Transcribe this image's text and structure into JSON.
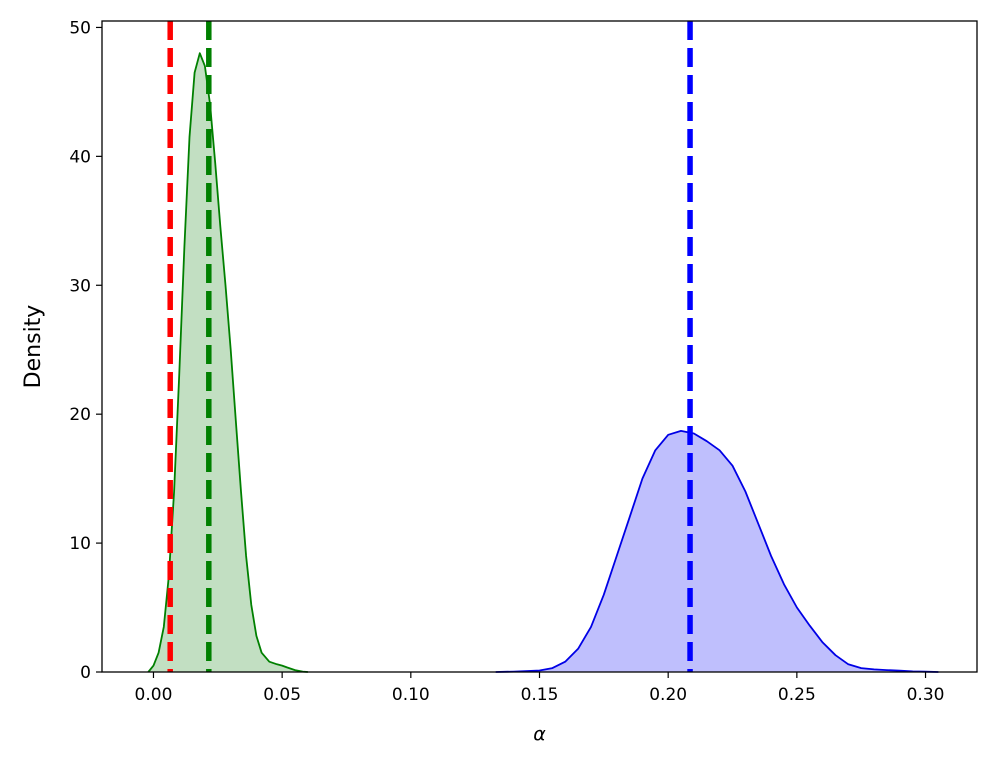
{
  "chart_data": {
    "type": "area",
    "xlabel": "α",
    "ylabel": "Density",
    "xlim": [
      -0.02,
      0.32
    ],
    "ylim": [
      0,
      50.5
    ],
    "grid": false,
    "x_ticks": [
      {
        "value": 0.0,
        "label": "0.00"
      },
      {
        "value": 0.05,
        "label": "0.05"
      },
      {
        "value": 0.1,
        "label": "0.10"
      },
      {
        "value": 0.15,
        "label": "0.15"
      },
      {
        "value": 0.2,
        "label": "0.20"
      },
      {
        "value": 0.25,
        "label": "0.25"
      },
      {
        "value": 0.3,
        "label": "0.30"
      }
    ],
    "y_ticks": [
      {
        "value": 0,
        "label": "0"
      },
      {
        "value": 10,
        "label": "10"
      },
      {
        "value": 20,
        "label": "20"
      },
      {
        "value": 30,
        "label": "30"
      },
      {
        "value": 40,
        "label": "40"
      },
      {
        "value": 50,
        "label": "50"
      }
    ],
    "series": [
      {
        "line_color": "#008000",
        "fill_color": "#c2dfc2",
        "points": [
          [
            -0.002,
            0
          ],
          [
            0.0,
            0.5
          ],
          [
            0.002,
            1.5
          ],
          [
            0.004,
            3.5
          ],
          [
            0.006,
            7.5
          ],
          [
            0.008,
            14
          ],
          [
            0.01,
            23
          ],
          [
            0.012,
            33
          ],
          [
            0.014,
            41.5
          ],
          [
            0.016,
            46.5
          ],
          [
            0.018,
            48
          ],
          [
            0.02,
            47
          ],
          [
            0.022,
            44
          ],
          [
            0.024,
            39.5
          ],
          [
            0.026,
            34.5
          ],
          [
            0.028,
            30
          ],
          [
            0.03,
            25
          ],
          [
            0.032,
            19.5
          ],
          [
            0.034,
            14
          ],
          [
            0.036,
            9
          ],
          [
            0.038,
            5.2
          ],
          [
            0.04,
            2.8
          ],
          [
            0.042,
            1.5
          ],
          [
            0.045,
            0.8
          ],
          [
            0.048,
            0.6
          ],
          [
            0.05,
            0.5
          ],
          [
            0.052,
            0.35
          ],
          [
            0.055,
            0.15
          ],
          [
            0.058,
            0.03
          ],
          [
            0.06,
            0
          ]
        ]
      },
      {
        "line_color": "#0000e6",
        "fill_color": "#bfbffd",
        "points": [
          [
            0.133,
            0
          ],
          [
            0.14,
            0.03
          ],
          [
            0.15,
            0.12
          ],
          [
            0.155,
            0.3
          ],
          [
            0.16,
            0.8
          ],
          [
            0.165,
            1.8
          ],
          [
            0.17,
            3.5
          ],
          [
            0.175,
            6
          ],
          [
            0.18,
            9
          ],
          [
            0.185,
            12
          ],
          [
            0.19,
            15
          ],
          [
            0.195,
            17.2
          ],
          [
            0.2,
            18.4
          ],
          [
            0.205,
            18.7
          ],
          [
            0.21,
            18.5
          ],
          [
            0.215,
            17.9
          ],
          [
            0.22,
            17.2
          ],
          [
            0.225,
            16
          ],
          [
            0.23,
            14
          ],
          [
            0.235,
            11.5
          ],
          [
            0.24,
            9
          ],
          [
            0.245,
            6.8
          ],
          [
            0.25,
            5
          ],
          [
            0.255,
            3.6
          ],
          [
            0.26,
            2.3
          ],
          [
            0.265,
            1.3
          ],
          [
            0.27,
            0.6
          ],
          [
            0.275,
            0.3
          ],
          [
            0.28,
            0.2
          ],
          [
            0.285,
            0.15
          ],
          [
            0.29,
            0.1
          ],
          [
            0.295,
            0.05
          ],
          [
            0.3,
            0.02
          ],
          [
            0.305,
            0
          ]
        ]
      }
    ],
    "vlines": [
      {
        "x": 0.0065,
        "color": "#ff0000"
      },
      {
        "x": 0.0215,
        "color": "#008000"
      },
      {
        "x": 0.2085,
        "color": "#0000ff"
      }
    ]
  }
}
